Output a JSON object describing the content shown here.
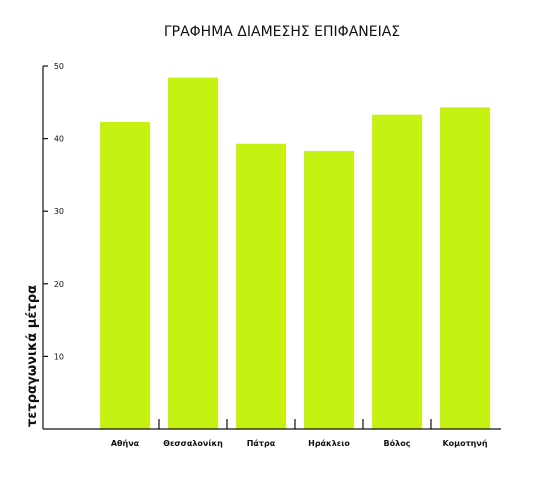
{
  "chart_data": {
    "type": "bar",
    "title": "ΓΡΑΦΗΜΑ ΔΙΑΜΕΣΗΣ ΕΠΙΦΑΝΕΙΑΣ",
    "xlabel": "",
    "ylabel": "τετραγωνικά μέτρα",
    "categories": [
      "Αθήνα",
      "Θεσσαλονίκη",
      "Πάτρα",
      "Ηράκλειο",
      "Βόλος",
      "Κομοτηνή"
    ],
    "values": [
      42.3,
      48.4,
      39.3,
      38.3,
      43.3,
      44.3
    ],
    "ylim": [
      0,
      50
    ],
    "yticks": [
      10,
      20,
      30,
      40,
      50
    ],
    "grid": false,
    "bar_color": "#c5f212",
    "axis_color": "#111111"
  }
}
